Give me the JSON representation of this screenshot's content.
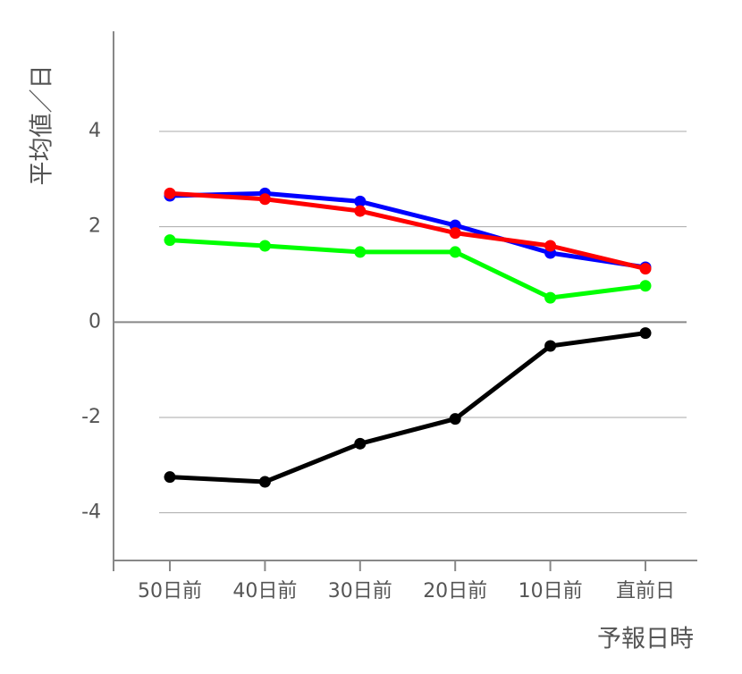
{
  "chart_data": {
    "type": "line",
    "x_label": "予報日時",
    "y_label": "平均値／日",
    "categories": [
      "50日前",
      "40日前",
      "30日前",
      "20日前",
      "10日前",
      "直前日"
    ],
    "series": [
      {
        "color": "#0000ff",
        "values": [
          2.65,
          2.7,
          2.53,
          2.03,
          1.45,
          1.15
        ]
      },
      {
        "color": "#ff0000",
        "values": [
          2.7,
          2.58,
          2.33,
          1.87,
          1.6,
          1.12
        ]
      },
      {
        "color": "#00ff00",
        "values": [
          1.72,
          1.6,
          1.47,
          1.47,
          0.51,
          0.76
        ]
      },
      {
        "color": "#000000",
        "values": [
          -3.25,
          -3.35,
          -2.55,
          -2.03,
          -0.5,
          -0.23
        ]
      }
    ],
    "ylim": [
      -5,
      6.1
    ],
    "yticks": [
      -4,
      -2,
      0,
      2,
      4
    ],
    "grid": true
  }
}
